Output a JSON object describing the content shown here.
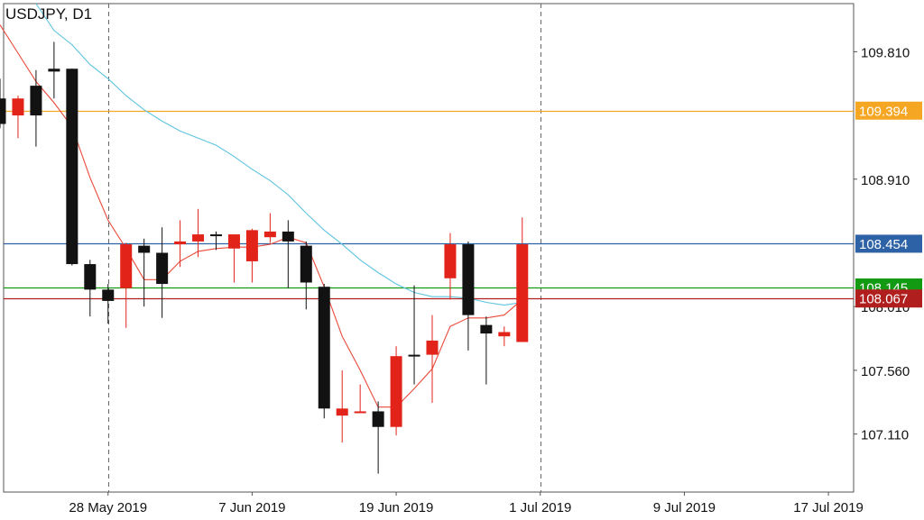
{
  "title": "USDJPY, D1",
  "chart_data": {
    "type": "candlestick",
    "symbol": "USDJPY",
    "timeframe": "D1",
    "ylim": [
      106.7,
      110.15
    ],
    "y_ticks": [
      107.11,
      107.56,
      108.01,
      108.91,
      109.81
    ],
    "y_tick_labels": [
      "107.110",
      "107.560",
      "108.010",
      "108.910",
      "109.810"
    ],
    "x_tick_labels": [
      {
        "day": 6,
        "label": "28 May 2019"
      },
      {
        "day": 14,
        "label": "7 Jun 2019"
      },
      {
        "day": 22,
        "label": "19 Jun 2019"
      },
      {
        "day": 30,
        "label": "1 Jul 2019"
      },
      {
        "day": 38,
        "label": "9 Jul 2019"
      },
      {
        "day": 46,
        "label": "17 Jul 2019"
      }
    ],
    "x_range_days": [
      0.2,
      47.4
    ],
    "vertical_markers_day": [
      6,
      30
    ],
    "candles": [
      {
        "day": 0,
        "open": 109.48,
        "high": 109.62,
        "low": 109.27,
        "close": 109.3
      },
      {
        "day": 1,
        "open": 109.36,
        "high": 109.5,
        "low": 109.2,
        "close": 109.48
      },
      {
        "day": 2,
        "open": 109.57,
        "high": 109.68,
        "low": 109.14,
        "close": 109.36
      },
      {
        "day": 3,
        "open": 109.69,
        "high": 109.88,
        "low": 109.48,
        "close": 109.67
      },
      {
        "day": 4,
        "open": 109.69,
        "high": 109.69,
        "low": 108.3,
        "close": 108.31
      },
      {
        "day": 5,
        "open": 108.31,
        "high": 108.34,
        "low": 107.94,
        "close": 108.13
      },
      {
        "day": 6,
        "open": 108.13,
        "high": 108.17,
        "low": 107.89,
        "close": 108.05
      },
      {
        "day": 7,
        "open": 108.14,
        "high": 108.46,
        "low": 107.86,
        "close": 108.45
      },
      {
        "day": 8,
        "open": 108.44,
        "high": 108.49,
        "low": 108.01,
        "close": 108.39
      },
      {
        "day": 9,
        "open": 108.39,
        "high": 108.57,
        "low": 107.93,
        "close": 108.17
      },
      {
        "day": 10,
        "open": 108.45,
        "high": 108.62,
        "low": 108.29,
        "close": 108.47
      },
      {
        "day": 11,
        "open": 108.47,
        "high": 108.7,
        "low": 108.36,
        "close": 108.52
      },
      {
        "day": 12,
        "open": 108.52,
        "high": 108.54,
        "low": 108.41,
        "close": 108.51
      },
      {
        "day": 13,
        "open": 108.42,
        "high": 108.52,
        "low": 108.18,
        "close": 108.52
      },
      {
        "day": 14,
        "open": 108.33,
        "high": 108.56,
        "low": 108.18,
        "close": 108.55
      },
      {
        "day": 15,
        "open": 108.5,
        "high": 108.67,
        "low": 108.46,
        "close": 108.54
      },
      {
        "day": 16,
        "open": 108.54,
        "high": 108.62,
        "low": 108.14,
        "close": 108.47
      },
      {
        "day": 17,
        "open": 108.44,
        "high": 108.47,
        "low": 107.99,
        "close": 108.18
      },
      {
        "day": 18,
        "open": 108.15,
        "high": 108.17,
        "low": 107.22,
        "close": 107.29
      },
      {
        "day": 19,
        "open": 107.24,
        "high": 107.56,
        "low": 107.05,
        "close": 107.29
      },
      {
        "day": 20,
        "open": 107.27,
        "high": 107.46,
        "low": 107.26,
        "close": 107.27
      },
      {
        "day": 21,
        "open": 107.27,
        "high": 107.34,
        "low": 106.83,
        "close": 107.16
      },
      {
        "day": 22,
        "open": 107.16,
        "high": 107.73,
        "low": 107.1,
        "close": 107.66
      },
      {
        "day": 23,
        "open": 107.67,
        "high": 108.16,
        "low": 107.46,
        "close": 107.66
      },
      {
        "day": 24,
        "open": 107.67,
        "high": 107.95,
        "low": 107.33,
        "close": 107.77
      },
      {
        "day": 25,
        "open": 108.21,
        "high": 108.53,
        "low": 108.06,
        "close": 108.45
      },
      {
        "day": 26,
        "open": 108.45,
        "high": 108.47,
        "low": 107.7,
        "close": 107.95
      },
      {
        "day": 27,
        "open": 107.88,
        "high": 107.94,
        "low": 107.46,
        "close": 107.82
      },
      {
        "day": 28,
        "open": 107.8,
        "high": 107.87,
        "low": 107.73,
        "close": 107.83
      },
      {
        "day": 29,
        "open": 107.76,
        "high": 108.64,
        "low": 107.76,
        "close": 108.45
      }
    ],
    "ma_fast": {
      "color": "#ea4a3a",
      "points": [
        {
          "day": 0,
          "value": 110.0
        },
        {
          "day": 1,
          "value": 109.8
        },
        {
          "day": 2,
          "value": 109.6
        },
        {
          "day": 3,
          "value": 109.45
        },
        {
          "day": 4,
          "value": 109.28
        },
        {
          "day": 5,
          "value": 108.92
        },
        {
          "day": 6,
          "value": 108.62
        },
        {
          "day": 7,
          "value": 108.42
        },
        {
          "day": 8,
          "value": 108.2
        },
        {
          "day": 9,
          "value": 108.2
        },
        {
          "day": 10,
          "value": 108.33
        },
        {
          "day": 11,
          "value": 108.4
        },
        {
          "day": 12,
          "value": 108.42
        },
        {
          "day": 13,
          "value": 108.43
        },
        {
          "day": 14,
          "value": 108.43
        },
        {
          "day": 15,
          "value": 108.45
        },
        {
          "day": 16,
          "value": 108.5
        },
        {
          "day": 17,
          "value": 108.46
        },
        {
          "day": 18,
          "value": 108.15
        },
        {
          "day": 19,
          "value": 107.8
        },
        {
          "day": 20,
          "value": 107.56
        },
        {
          "day": 21,
          "value": 107.3
        },
        {
          "day": 22,
          "value": 107.3
        },
        {
          "day": 23,
          "value": 107.43
        },
        {
          "day": 24,
          "value": 107.57
        },
        {
          "day": 25,
          "value": 107.87
        },
        {
          "day": 26,
          "value": 107.93
        },
        {
          "day": 27,
          "value": 107.93
        },
        {
          "day": 28,
          "value": 107.95
        },
        {
          "day": 29,
          "value": 108.06
        }
      ]
    },
    "ma_slow": {
      "color": "#5ec3e0",
      "points": [
        {
          "day": 2,
          "value": 110.15
        },
        {
          "day": 3,
          "value": 109.96
        },
        {
          "day": 4,
          "value": 109.86
        },
        {
          "day": 5,
          "value": 109.72
        },
        {
          "day": 6,
          "value": 109.62
        },
        {
          "day": 7,
          "value": 109.5
        },
        {
          "day": 8,
          "value": 109.4
        },
        {
          "day": 9,
          "value": 109.32
        },
        {
          "day": 10,
          "value": 109.25
        },
        {
          "day": 11,
          "value": 109.2
        },
        {
          "day": 12,
          "value": 109.15
        },
        {
          "day": 13,
          "value": 109.07
        },
        {
          "day": 14,
          "value": 108.98
        },
        {
          "day": 15,
          "value": 108.9
        },
        {
          "day": 16,
          "value": 108.8
        },
        {
          "day": 17,
          "value": 108.67
        },
        {
          "day": 18,
          "value": 108.55
        },
        {
          "day": 19,
          "value": 108.45
        },
        {
          "day": 20,
          "value": 108.34
        },
        {
          "day": 21,
          "value": 108.25
        },
        {
          "day": 22,
          "value": 108.17
        },
        {
          "day": 23,
          "value": 108.11
        },
        {
          "day": 24,
          "value": 108.08
        },
        {
          "day": 25,
          "value": 108.08
        },
        {
          "day": 26,
          "value": 108.07
        },
        {
          "day": 27,
          "value": 108.04
        },
        {
          "day": 28,
          "value": 108.02
        },
        {
          "day": 29,
          "value": 108.04
        }
      ]
    },
    "horizontal_lines": [
      {
        "value": 109.394,
        "label": "109.394",
        "color": "#f5a623",
        "label_bg": "#f5a623"
      },
      {
        "value": 108.454,
        "label": "108.454",
        "color": "#2d63a6",
        "label_bg": "#2d63a6"
      },
      {
        "value": 108.145,
        "label": "108.145",
        "color": "#139a13",
        "label_bg": "#139a13"
      },
      {
        "value": 108.067,
        "label": "108.067",
        "color": "#b01e1e",
        "label_bg": "#b01e1e"
      }
    ],
    "colors": {
      "bull": "#e2231a",
      "bear": "#121212",
      "grid": "#888888"
    }
  }
}
